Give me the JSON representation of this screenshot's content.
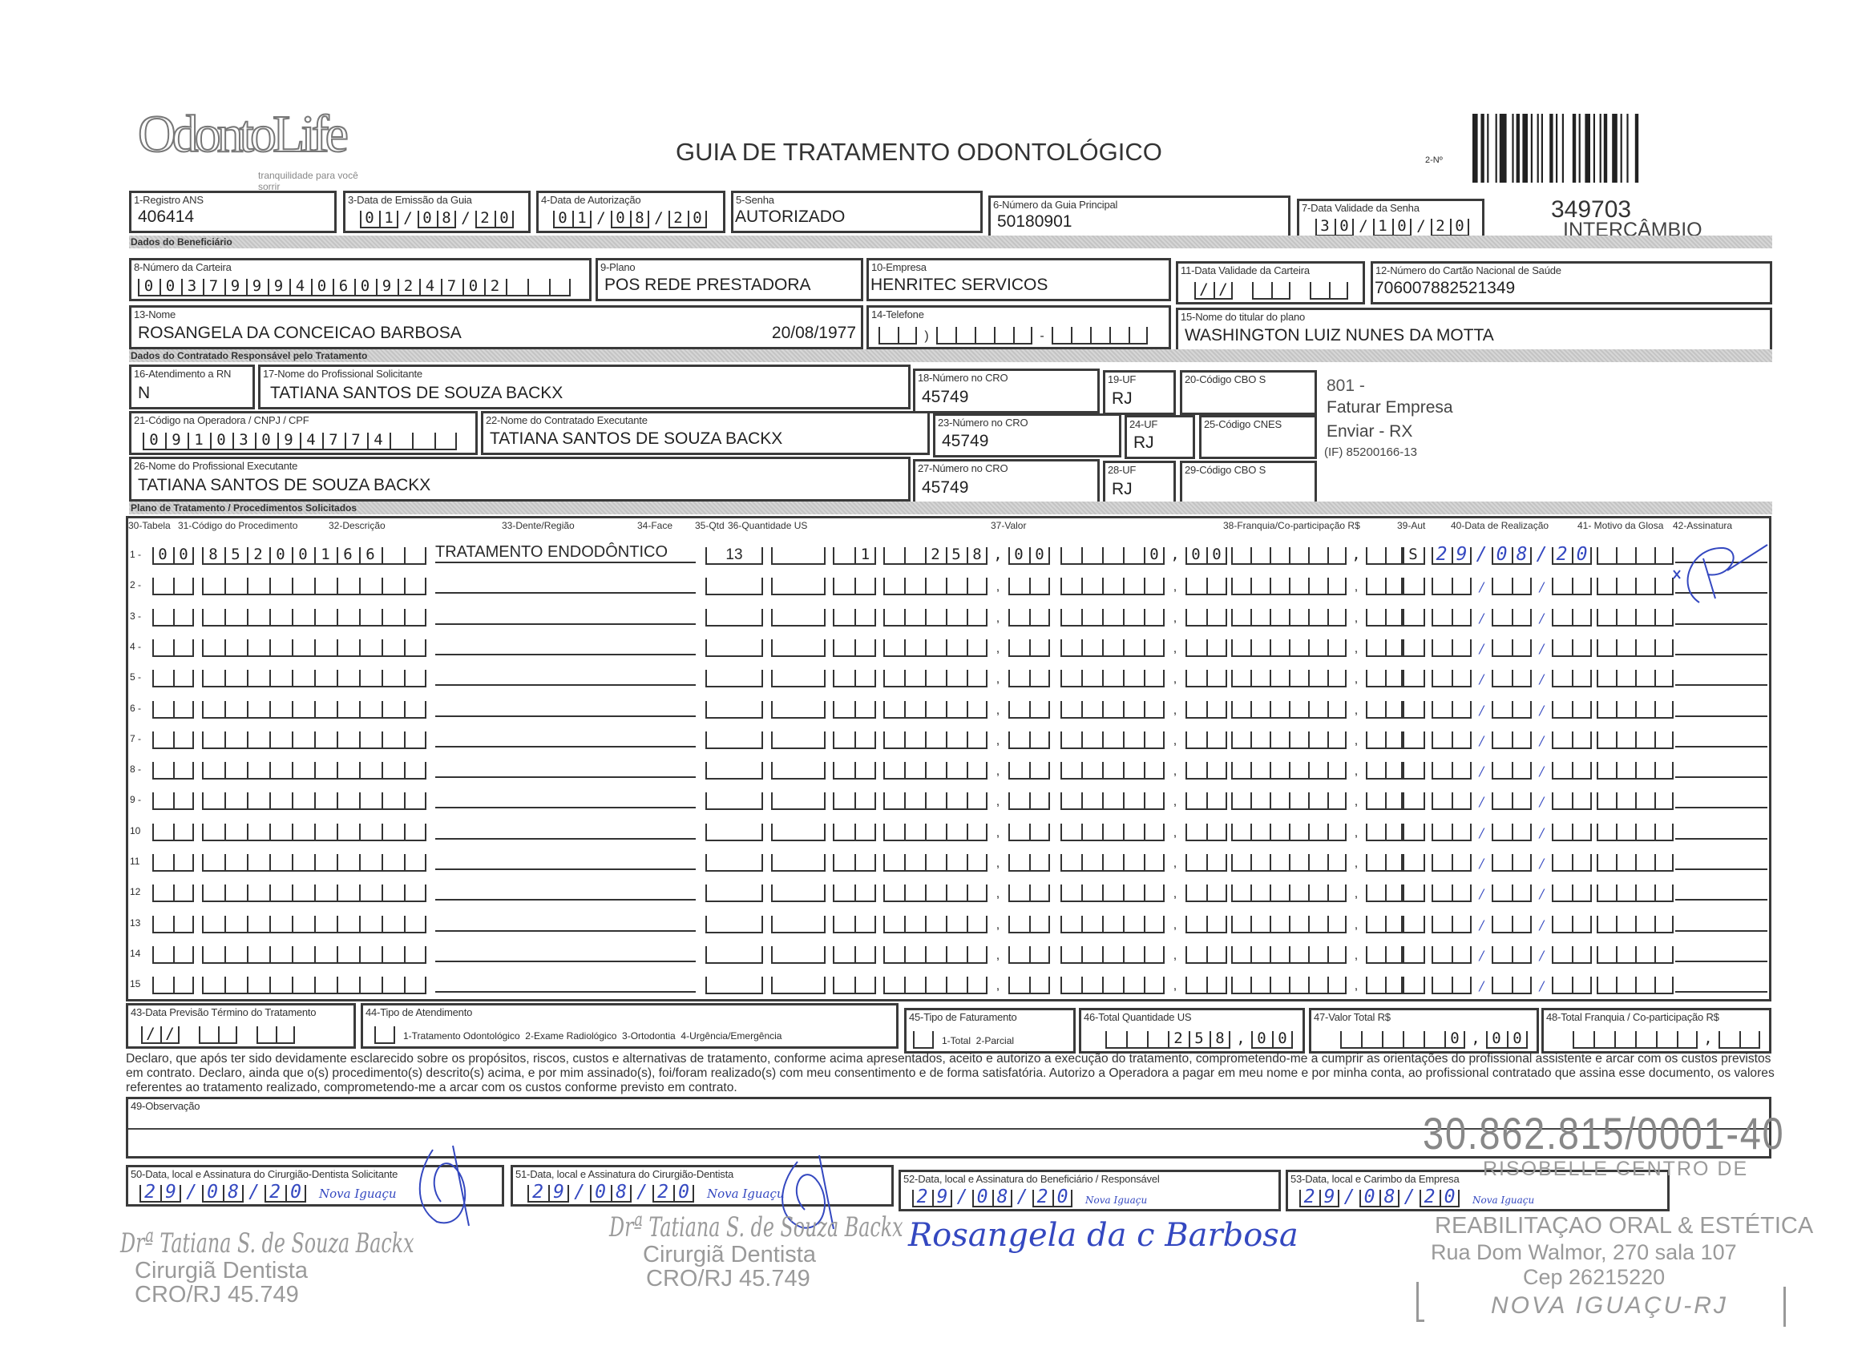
{
  "header": {
    "logo": "OdontoLife",
    "logo_tagline": "tranquilidade para você sorrir",
    "title": "GUIA DE TRATAMENTO ODONTOLÓGICO",
    "numero_label": "2-Nº",
    "guide_number": "349703",
    "guide_type": "INTERCÂMBIO"
  },
  "fields": {
    "f1": {
      "label": "1-Registro ANS",
      "value": "406414"
    },
    "f3": {
      "label": "3-Data de Emissão da Guia",
      "value": "01/08/20"
    },
    "f4": {
      "label": "4-Data de Autorização",
      "value": "01/08/20"
    },
    "f5": {
      "label": "5-Senha",
      "value": "AUTORIZADO"
    },
    "f6": {
      "label": "6-Número da Guia Principal",
      "value": "50180901"
    },
    "f7": {
      "label": "7-Data Validade da Senha",
      "value": "30/10/20"
    },
    "f8": {
      "label": "8-Número da Carteira",
      "value": "00379994060924702"
    },
    "f9": {
      "label": "9-Plano",
      "value": "POS REDE PRESTADORA"
    },
    "f10": {
      "label": "10-Empresa",
      "value": "HENRITEC SERVICOS"
    },
    "f11": {
      "label": "11-Data Validade da Carteira",
      "value": "//"
    },
    "f12": {
      "label": "12-Número do Cartão Nacional de Saúde",
      "value": "706007882521349"
    },
    "f13": {
      "label": "13-Nome",
      "value": "ROSANGELA DA CONCEICAO BARBOSA",
      "birthdate": "20/08/1977"
    },
    "f14": {
      "label": "14-Telefone",
      "value": ""
    },
    "f15": {
      "label": "15-Nome do titular do plano",
      "value": "WASHINGTON LUIZ NUNES DA MOTTA"
    },
    "f16": {
      "label": "16-Atendimento a RN",
      "value": "N"
    },
    "f17": {
      "label": "17-Nome do Profissional Solicitante",
      "value": "TATIANA SANTOS DE SOUZA BACKX"
    },
    "f18": {
      "label": "18-Número no CRO",
      "value": "45749"
    },
    "f19": {
      "label": "19-UF",
      "value": "RJ"
    },
    "f20": {
      "label": "20-Código CBO S",
      "value": ""
    },
    "f21": {
      "label": "21-Código na Operadora / CNPJ / CPF",
      "value": "09103094774"
    },
    "f22": {
      "label": "22-Nome do Contratado Executante",
      "value": "TATIANA SANTOS DE SOUZA BACKX"
    },
    "f23": {
      "label": "23-Número no CRO",
      "value": "45749"
    },
    "f24": {
      "label": "24-UF",
      "value": "RJ"
    },
    "f25": {
      "label": "25-Código CNES",
      "value": ""
    },
    "f26": {
      "label": "26-Nome do Profissional Executante",
      "value": "TATIANA SANTOS DE SOUZA BACKX"
    },
    "f27": {
      "label": "27-Número no CRO",
      "value": "45749"
    },
    "f28": {
      "label": "28-UF",
      "value": "RJ"
    },
    "f29": {
      "label": "29-Código CBO S",
      "value": ""
    }
  },
  "sections": {
    "beneficiario": "Dados do Beneficiário",
    "contratado": "Dados do Contratado Responsável pelo Tratamento",
    "plano": "Plano de Tratamento / Procedimentos Solicitados"
  },
  "notes": {
    "line1": "801 -",
    "line2": "Faturar Empresa",
    "line3": "Enviar - RX",
    "line4": "(IF) 85200166-13"
  },
  "procedures": {
    "headers": [
      "30-Tabela",
      "31-Código do Procedimento",
      "32-Descrição",
      "33-Dente/Região",
      "34-Face",
      "35-Qtd",
      "36-Quantidade US",
      "37-Valor",
      "38-Franquia/Co-participação R$",
      "39-Aut",
      "40-Data de Realização",
      "41- Motivo da Glosa",
      "42-Assinatura"
    ],
    "rows": [
      {
        "n": "1 -",
        "tabela": "00",
        "codigo": "85200166",
        "descricao": "TRATAMENTO ENDODÔNTICO",
        "dente": "13",
        "face": "",
        "qtd": "1",
        "qtd_us": "258,00",
        "valor": "0,00",
        "franquia": ",",
        "aut": "S",
        "data": "29/08/20",
        "glosa": "",
        "assinatura": "R"
      },
      {
        "n": "2 -"
      },
      {
        "n": "3 -"
      },
      {
        "n": "4 -"
      },
      {
        "n": "5 -"
      },
      {
        "n": "6 -"
      },
      {
        "n": "7 -"
      },
      {
        "n": "8 -"
      },
      {
        "n": "9 -"
      },
      {
        "n": "10"
      },
      {
        "n": "11"
      },
      {
        "n": "12"
      },
      {
        "n": "13"
      },
      {
        "n": "14"
      },
      {
        "n": "15"
      }
    ]
  },
  "totals": {
    "f43": {
      "label": "43-Data Previsão Término do Tratamento",
      "value": "//"
    },
    "f44": {
      "label": "44-Tipo de Atendimento",
      "options": "1-Tratamento Odontológico  2-Exame Radiológico  3-Ortodontia  4-Urgência/Emergência"
    },
    "f45": {
      "label": "45-Tipo de Faturamento",
      "options": "1-Total  2-Parcial"
    },
    "f46": {
      "label": "46-Total Quantidade US",
      "value": "258,00"
    },
    "f47": {
      "label": "47-Valor Total R$",
      "value": "0,00"
    },
    "f48": {
      "label": "48-Total Franquia / Co-participação R$",
      "value": ","
    }
  },
  "declaration": "Declaro, que após ter sido devidamente esclarecido sobre os propósitos, riscos, custos e alternativas de tratamento, conforme acima apresentados, aceito e autorizo a execução do tratamento, comprometendo-me a cumprir as orientações do profissional assistente e arcar com os custos previstos em contrato. Declaro, ainda que o(s) procedimento(s) descrito(s) acima, e por mim assinado(s), foi/foram realizado(s) com meu consentimento e de forma satisfatória. Autorizo a Operadora a pagar em meu nome e por minha conta, ao profissional contratado que assina esse documento, os valores referentes ao tratamento realizado, comprometendo-me a arcar com os custos conforme previsto em contrato.",
  "observacao": {
    "label": "49-Observação",
    "value": ""
  },
  "signatures": {
    "f50": {
      "label": "50-Data, local e Assinatura do Cirurgião-Dentista Solicitante",
      "date": "29/08/20",
      "place": "Nova Iguaçu"
    },
    "f51": {
      "label": "51-Data, local e Assinatura do Cirurgião-Dentista",
      "date": "29/08/20",
      "place": "Nova Iguaçu"
    },
    "f52": {
      "label": "52-Data, local e Assinatura do Beneficiário / Responsável",
      "date": "29/08/20",
      "place": "Nova Iguaçu",
      "signature": "Rosangela da c Barbosa"
    },
    "f53": {
      "label": "53-Data, local e Carimbo da Empresa",
      "date": "29/08/20",
      "place": "Nova Iguaçu"
    }
  },
  "stamps": {
    "dentist": {
      "name": "Drª Tatiana S. de Souza Backx",
      "title": "Cirurgiã Dentista",
      "cro": "CRO/RJ 45.749"
    },
    "company": {
      "cnpj": "30.862.815/0001-40",
      "line1": "RISOBELLE CENTRO DE",
      "line2": "REABILITAÇAO ORAL & ESTÉTICA",
      "line3": "Rua Dom Walmor, 270 sala 107",
      "line4": "Cep 26215220",
      "line5": "NOVA IGUAÇU-RJ"
    }
  },
  "colors": {
    "ink": "#3448c0",
    "form": "#3a3a3a",
    "stamp": "#9a9a9a"
  }
}
